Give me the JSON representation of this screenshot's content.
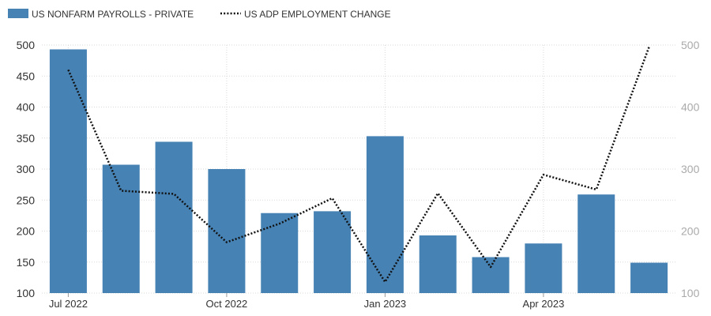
{
  "chart_data": {
    "type": "bar",
    "months": [
      "2022-07",
      "2022-08",
      "2022-09",
      "2022-10",
      "2022-11",
      "2022-12",
      "2023-01",
      "2023-02",
      "2023-03",
      "2023-04",
      "2023-05",
      "2023-06"
    ],
    "series": [
      {
        "name": "US NONFARM PAYROLLS - PRIVATE",
        "type": "bar",
        "axis": "left",
        "values": [
          493,
          307,
          344,
          300,
          229,
          232,
          353,
          193,
          158,
          180,
          259,
          149
        ]
      },
      {
        "name": "US ADP EMPLOYMENT CHANGE",
        "type": "line",
        "axis": "right",
        "style": "dotted",
        "values": [
          460,
          265,
          260,
          182,
          212,
          253,
          118,
          261,
          142,
          291,
          267,
          497
        ]
      }
    ],
    "x_tick_labels": [
      "Jul 2022",
      "Oct 2022",
      "Jan 2023",
      "Apr 2023"
    ],
    "left_axis": {
      "ylim": [
        100,
        500
      ],
      "ticks": [
        100,
        150,
        200,
        250,
        300,
        350,
        400,
        450,
        500
      ]
    },
    "right_axis": {
      "ylim": [
        100,
        500
      ],
      "ticks": [
        100,
        200,
        300,
        400,
        500
      ]
    },
    "grid": true,
    "legend_position": "top-left",
    "colors": {
      "bar": "#4682b4",
      "line": "#111111",
      "grid": "#d9d9d9",
      "right_tick": "#aaaaaa"
    }
  }
}
